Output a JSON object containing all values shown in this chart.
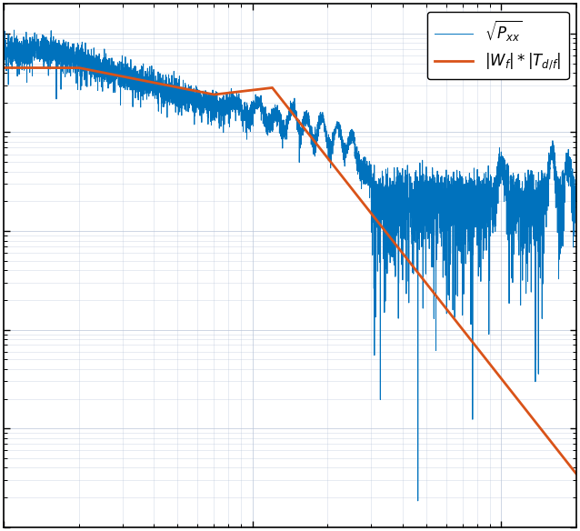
{
  "title": "",
  "xlabel": "",
  "ylabel": "",
  "xlim": [
    1,
    200
  ],
  "ylim": [
    1e-05,
    2.0
  ],
  "blue_color": "#0072BD",
  "orange_color": "#D95319",
  "legend_label_blue": "$\\sqrt{P_{xx}}$",
  "legend_label_orange": "$|W_f| * |T_{d/f}|$",
  "background_color": "#ffffff",
  "grid_color": "#b8c4d8",
  "figsize": [
    6.38,
    5.84
  ],
  "dpi": 100,
  "blue_linewidth": 0.7,
  "orange_linewidth": 2.0,
  "noise_seed": 12
}
